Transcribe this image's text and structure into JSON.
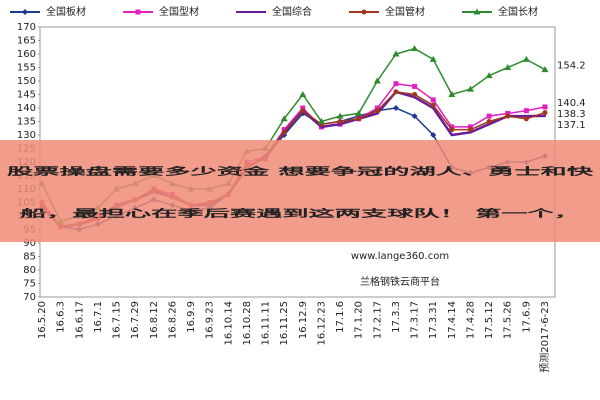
{
  "chart_data": {
    "type": "line",
    "categories": [
      "16.5.20",
      "16.6.3",
      "16.6.17",
      "16.7.1",
      "16.7.15",
      "16.7.29",
      "16.8.12",
      "16.8.26",
      "16.9.9",
      "16.9.23",
      "16.10.14",
      "16.10.28",
      "16.11.11",
      "16.11.25",
      "16.12.9",
      "16.12.23",
      "17.1.6",
      "17.1.20",
      "17.2.17",
      "17.3.3",
      "17.3.17",
      "17.3.31",
      "17.4.14",
      "17.4.28",
      "17.5.12",
      "17.5.26",
      "17.6.9",
      "预测2017-6-23"
    ],
    "series": [
      {
        "name": "全国板材",
        "color": "#1f3a93",
        "last_value_label": false,
        "values": [
          103,
          96,
          95,
          97,
          100,
          103,
          106,
          104,
          102,
          103,
          108,
          118,
          122,
          130,
          138,
          134,
          135,
          137,
          139,
          140,
          137,
          130,
          118,
          116,
          118,
          120,
          120,
          122.2
        ]
      },
      {
        "name": "全国型材",
        "color": "#e020c0",
        "last_value_label": true,
        "values": [
          105,
          96,
          97,
          100,
          104,
          106,
          110,
          108,
          104,
          105,
          108,
          120,
          122,
          132,
          140,
          133,
          134,
          136,
          140,
          149,
          148,
          143,
          133,
          133,
          137,
          138,
          139,
          140.4
        ]
      },
      {
        "name": "全国综合",
        "color": "#6a1b9a",
        "last_value_label": true,
        "values": [
          104,
          96,
          97,
          99,
          104,
          106,
          109,
          107,
          104,
          104,
          108,
          118,
          122,
          131,
          139,
          133,
          134,
          136,
          138,
          146,
          144,
          140,
          130,
          131,
          134,
          137,
          137,
          137.1
        ]
      },
      {
        "name": "全国管材",
        "color": "#a0361a",
        "last_value_label": true,
        "values": [
          104,
          96,
          97,
          99,
          103,
          106,
          110,
          107,
          104,
          105,
          108,
          119,
          121,
          131,
          139,
          134,
          135,
          136,
          139,
          146,
          145,
          141,
          132,
          132,
          135,
          137,
          136,
          138.3
        ]
      },
      {
        "name": "全国长材",
        "color": "#2e8b2e",
        "last_value_label": true,
        "values": [
          112,
          98,
          100,
          103,
          110,
          112,
          115,
          112,
          110,
          110,
          112,
          124,
          125,
          136,
          145,
          135,
          137,
          138,
          150,
          160,
          162,
          158,
          145,
          147,
          152,
          155,
          158,
          154.2
        ]
      }
    ],
    "ylim": [
      70,
      170
    ],
    "yticks": [
      70,
      75,
      80,
      85,
      90,
      95,
      100,
      105,
      110,
      115,
      120,
      125,
      130,
      135,
      140,
      145,
      150,
      155,
      160,
      165,
      170
    ],
    "legend": "top"
  },
  "overlay": {
    "headline": [
      "股票操盘需要多少资金 想要争冠的湖人、勇士和快",
      "船，最担心在季后赛遇到这两支球队！ 第一个，"
    ],
    "watermark": [
      "www.lange360.com",
      "兰格钢铁云商平台"
    ]
  }
}
